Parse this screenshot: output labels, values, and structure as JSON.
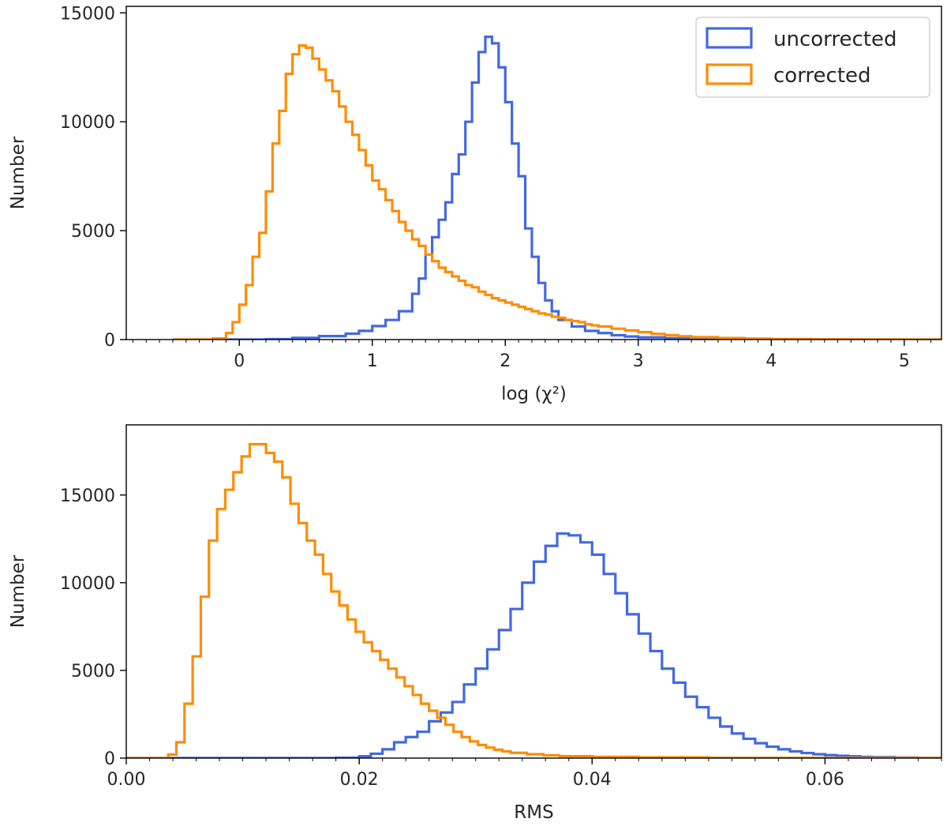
{
  "chart_data": [
    {
      "type": "histogram",
      "xlabel": "log (χ²)",
      "ylabel": "Number",
      "xlim": [
        -0.85,
        5.28
      ],
      "ylim": [
        0,
        15300
      ],
      "xticks": [
        0,
        1,
        2,
        3,
        4,
        5
      ],
      "yticks": [
        0,
        5000,
        10000,
        15000
      ],
      "x_minor_step": 0.1,
      "legend": {
        "placement": "top-right"
      },
      "colors": {
        "uncorrected": "#4169e1",
        "corrected": "#ff8c00"
      },
      "series": [
        {
          "name": "uncorrected",
          "color": "#4169e1",
          "bins": [
            [
              -0.5,
              0
            ],
            [
              0.0,
              2
            ],
            [
              0.2,
              20
            ],
            [
              0.4,
              80
            ],
            [
              0.6,
              160
            ],
            [
              0.8,
              270
            ],
            [
              0.9,
              400
            ],
            [
              1.0,
              620
            ],
            [
              1.1,
              900
            ],
            [
              1.2,
              1300
            ],
            [
              1.3,
              2100
            ],
            [
              1.35,
              2800
            ],
            [
              1.4,
              3900
            ],
            [
              1.45,
              4700
            ],
            [
              1.5,
              5500
            ],
            [
              1.55,
              6300
            ],
            [
              1.6,
              7600
            ],
            [
              1.65,
              8500
            ],
            [
              1.7,
              10000
            ],
            [
              1.75,
              11800
            ],
            [
              1.8,
              13200
            ],
            [
              1.85,
              13900
            ],
            [
              1.9,
              13600
            ],
            [
              1.95,
              12500
            ],
            [
              2.0,
              10900
            ],
            [
              2.05,
              9000
            ],
            [
              2.1,
              7500
            ],
            [
              2.15,
              5100
            ],
            [
              2.2,
              3800
            ],
            [
              2.25,
              2600
            ],
            [
              2.3,
              1800
            ],
            [
              2.35,
              1300
            ],
            [
              2.4,
              900
            ],
            [
              2.5,
              600
            ],
            [
              2.6,
              400
            ],
            [
              2.7,
              300
            ],
            [
              2.8,
              200
            ],
            [
              2.9,
              140
            ],
            [
              3.0,
              100
            ],
            [
              3.2,
              60
            ],
            [
              3.4,
              35
            ],
            [
              3.6,
              20
            ],
            [
              3.8,
              12
            ],
            [
              4.0,
              6
            ],
            [
              4.4,
              3
            ],
            [
              4.8,
              0
            ],
            [
              5.0,
              0
            ]
          ]
        },
        {
          "name": "corrected",
          "color": "#ff8c00",
          "bins": [
            [
              -0.5,
              0
            ],
            [
              -0.2,
              50
            ],
            [
              -0.1,
              300
            ],
            [
              -0.05,
              800
            ],
            [
              0.0,
              1600
            ],
            [
              0.05,
              2500
            ],
            [
              0.1,
              3800
            ],
            [
              0.15,
              4900
            ],
            [
              0.2,
              6800
            ],
            [
              0.25,
              9000
            ],
            [
              0.3,
              10500
            ],
            [
              0.35,
              12200
            ],
            [
              0.4,
              13100
            ],
            [
              0.45,
              13500
            ],
            [
              0.5,
              13400
            ],
            [
              0.55,
              12900
            ],
            [
              0.6,
              12400
            ],
            [
              0.65,
              11900
            ],
            [
              0.7,
              11400
            ],
            [
              0.75,
              10700
            ],
            [
              0.8,
              10000
            ],
            [
              0.85,
              9400
            ],
            [
              0.9,
              8700
            ],
            [
              0.95,
              8000
            ],
            [
              1.0,
              7300
            ],
            [
              1.05,
              6900
            ],
            [
              1.1,
              6400
            ],
            [
              1.15,
              5900
            ],
            [
              1.2,
              5400
            ],
            [
              1.25,
              5000
            ],
            [
              1.3,
              4600
            ],
            [
              1.35,
              4300
            ],
            [
              1.4,
              3900
            ],
            [
              1.45,
              3600
            ],
            [
              1.5,
              3300
            ],
            [
              1.55,
              3100
            ],
            [
              1.6,
              2900
            ],
            [
              1.65,
              2700
            ],
            [
              1.7,
              2500
            ],
            [
              1.75,
              2400
            ],
            [
              1.8,
              2200
            ],
            [
              1.85,
              2050
            ],
            [
              1.9,
              1900
            ],
            [
              1.95,
              1800
            ],
            [
              2.0,
              1700
            ],
            [
              2.05,
              1600
            ],
            [
              2.1,
              1500
            ],
            [
              2.15,
              1400
            ],
            [
              2.2,
              1300
            ],
            [
              2.25,
              1200
            ],
            [
              2.3,
              1150
            ],
            [
              2.35,
              1050
            ],
            [
              2.4,
              1000
            ],
            [
              2.45,
              900
            ],
            [
              2.5,
              850
            ],
            [
              2.55,
              800
            ],
            [
              2.6,
              700
            ],
            [
              2.65,
              650
            ],
            [
              2.7,
              600
            ],
            [
              2.8,
              500
            ],
            [
              2.9,
              420
            ],
            [
              3.0,
              340
            ],
            [
              3.1,
              260
            ],
            [
              3.2,
              200
            ],
            [
              3.3,
              150
            ],
            [
              3.4,
              110
            ],
            [
              3.6,
              70
            ],
            [
              3.8,
              40
            ],
            [
              4.0,
              25
            ],
            [
              4.3,
              12
            ],
            [
              4.6,
              5
            ],
            [
              5.0,
              0
            ]
          ]
        }
      ]
    },
    {
      "type": "histogram",
      "xlabel": "RMS",
      "ylabel": "Number",
      "xlim": [
        0.0,
        0.07
      ],
      "ylim": [
        0,
        19000
      ],
      "xticks": [
        0.0,
        0.02,
        0.04,
        0.06
      ],
      "yticks": [
        0,
        5000,
        10000,
        15000
      ],
      "tick_labels_x": [
        "0.00",
        "0.02",
        "0.04",
        "0.06"
      ],
      "x_minor_step": 0.002,
      "colors": {
        "uncorrected": "#4169e1",
        "corrected": "#ff8c00"
      },
      "series": [
        {
          "name": "uncorrected",
          "color": "#4169e1",
          "bins": [
            [
              0.0,
              0
            ],
            [
              0.018,
              20
            ],
            [
              0.02,
              100
            ],
            [
              0.021,
              250
            ],
            [
              0.022,
              500
            ],
            [
              0.023,
              900
            ],
            [
              0.024,
              1200
            ],
            [
              0.025,
              1500
            ],
            [
              0.026,
              2100
            ],
            [
              0.027,
              2600
            ],
            [
              0.028,
              3200
            ],
            [
              0.029,
              4200
            ],
            [
              0.03,
              5100
            ],
            [
              0.031,
              6200
            ],
            [
              0.032,
              7300
            ],
            [
              0.033,
              8500
            ],
            [
              0.034,
              10000
            ],
            [
              0.035,
              11200
            ],
            [
              0.036,
              12100
            ],
            [
              0.037,
              12800
            ],
            [
              0.038,
              12700
            ],
            [
              0.039,
              12300
            ],
            [
              0.04,
              11600
            ],
            [
              0.041,
              10500
            ],
            [
              0.042,
              9400
            ],
            [
              0.043,
              8200
            ],
            [
              0.044,
              7100
            ],
            [
              0.045,
              6100
            ],
            [
              0.046,
              5100
            ],
            [
              0.047,
              4300
            ],
            [
              0.048,
              3500
            ],
            [
              0.049,
              2900
            ],
            [
              0.05,
              2300
            ],
            [
              0.051,
              1800
            ],
            [
              0.052,
              1400
            ],
            [
              0.053,
              1100
            ],
            [
              0.054,
              850
            ],
            [
              0.055,
              650
            ],
            [
              0.056,
              500
            ],
            [
              0.057,
              380
            ],
            [
              0.058,
              290
            ],
            [
              0.059,
              220
            ],
            [
              0.06,
              170
            ],
            [
              0.061,
              130
            ],
            [
              0.062,
              100
            ],
            [
              0.063,
              70
            ],
            [
              0.064,
              50
            ],
            [
              0.066,
              30
            ],
            [
              0.068,
              15
            ]
          ]
        },
        {
          "name": "corrected",
          "color": "#ff8c00",
          "bins": [
            [
              0.0,
              0
            ],
            [
              0.0036,
              200
            ],
            [
              0.0043,
              900
            ],
            [
              0.005,
              3100
            ],
            [
              0.0057,
              5800
            ],
            [
              0.0064,
              9200
            ],
            [
              0.0071,
              12400
            ],
            [
              0.0078,
              14200
            ],
            [
              0.0085,
              15300
            ],
            [
              0.0092,
              16300
            ],
            [
              0.0099,
              17200
            ],
            [
              0.0106,
              17900
            ],
            [
              0.0113,
              17900
            ],
            [
              0.012,
              17400
            ],
            [
              0.0127,
              16900
            ],
            [
              0.0134,
              16000
            ],
            [
              0.0141,
              14500
            ],
            [
              0.0148,
              13400
            ],
            [
              0.0155,
              12400
            ],
            [
              0.0162,
              11600
            ],
            [
              0.0169,
              10500
            ],
            [
              0.0176,
              9500
            ],
            [
              0.0183,
              8700
            ],
            [
              0.019,
              7900
            ],
            [
              0.0197,
              7200
            ],
            [
              0.0204,
              6600
            ],
            [
              0.0211,
              6100
            ],
            [
              0.0218,
              5600
            ],
            [
              0.0225,
              5100
            ],
            [
              0.0232,
              4600
            ],
            [
              0.0239,
              4100
            ],
            [
              0.0246,
              3600
            ],
            [
              0.0253,
              3100
            ],
            [
              0.026,
              2700
            ],
            [
              0.0267,
              2300
            ],
            [
              0.0274,
              1900
            ],
            [
              0.0281,
              1500
            ],
            [
              0.0288,
              1200
            ],
            [
              0.0295,
              950
            ],
            [
              0.0302,
              750
            ],
            [
              0.0309,
              600
            ],
            [
              0.0316,
              480
            ],
            [
              0.0323,
              380
            ],
            [
              0.033,
              300
            ],
            [
              0.0344,
              220
            ],
            [
              0.0358,
              160
            ],
            [
              0.0372,
              110
            ],
            [
              0.04,
              70
            ],
            [
              0.044,
              40
            ],
            [
              0.05,
              15
            ],
            [
              0.06,
              5
            ],
            [
              0.07,
              0
            ]
          ]
        }
      ]
    }
  ]
}
